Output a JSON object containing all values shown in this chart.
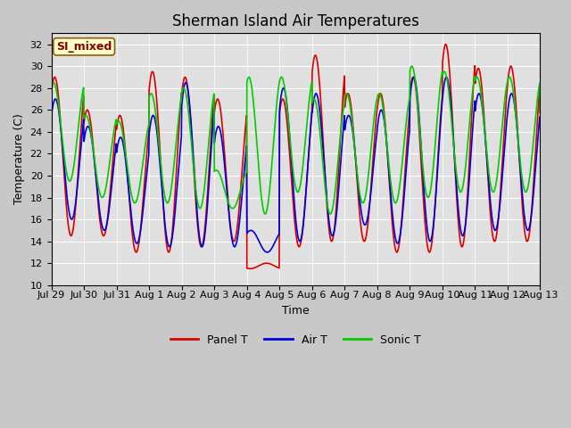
{
  "title": "Sherman Island Air Temperatures",
  "xlabel": "Time",
  "ylabel": "Temperature (C)",
  "ylim": [
    10,
    33
  ],
  "yticks": [
    10,
    12,
    14,
    16,
    18,
    20,
    22,
    24,
    26,
    28,
    30,
    32
  ],
  "fig_bg_color": "#c8c8c8",
  "plot_bg_color": "#e0e0e0",
  "line_colors": {
    "panel": "#dd0000",
    "air": "#0000dd",
    "sonic": "#00cc00"
  },
  "line_widths": {
    "panel": 1.2,
    "air": 1.2,
    "sonic": 1.2
  },
  "label_text": "SI_mixed",
  "legend_labels": [
    "Panel T",
    "Air T",
    "Sonic T"
  ],
  "x_tick_labels": [
    "Jul 29",
    "Jul 30",
    "Jul 31",
    "Aug 1",
    "Aug 2",
    "Aug 3",
    "Aug 4",
    "Aug 5",
    "Aug 6",
    "Aug 7",
    "Aug 8",
    "Aug 9",
    "Aug 10",
    "Aug 11",
    "Aug 12",
    "Aug 13"
  ],
  "title_fontsize": 12,
  "axis_fontsize": 9,
  "tick_fontsize": 8,
  "panel_peaks": [
    29.0,
    26.0,
    25.5,
    29.5,
    29.0,
    27.0,
    11.5,
    27.0,
    31.0,
    27.5,
    27.5,
    29.0,
    32.0,
    29.8,
    30.0,
    27.0
  ],
  "panel_mins": [
    14.5,
    14.5,
    13.0,
    13.0,
    13.5,
    14.0,
    12.0,
    13.5,
    14.0,
    14.0,
    13.0,
    13.0,
    13.5,
    14.0,
    14.0,
    15.0
  ],
  "air_peaks": [
    27.0,
    24.5,
    23.5,
    25.5,
    28.5,
    24.5,
    15.0,
    28.0,
    27.5,
    25.5,
    26.0,
    29.0,
    29.0,
    27.5,
    27.5,
    26.0
  ],
  "air_mins": [
    16.0,
    15.0,
    13.8,
    13.5,
    13.5,
    13.5,
    13.0,
    14.0,
    14.5,
    15.5,
    13.8,
    14.0,
    14.5,
    15.0,
    15.0,
    16.0
  ],
  "sonic_peaks": [
    28.5,
    25.5,
    25.0,
    27.5,
    28.0,
    20.5,
    29.0,
    29.0,
    27.0,
    27.5,
    27.5,
    30.0,
    29.5,
    29.0,
    29.0,
    26.0
  ],
  "sonic_mins": [
    19.5,
    18.0,
    17.5,
    17.5,
    17.0,
    17.0,
    16.5,
    18.5,
    16.5,
    17.5,
    17.5,
    18.0,
    18.5,
    18.5,
    18.5,
    18.5
  ],
  "peak_hour_panel": 14.5,
  "peak_hour_air": 15.0,
  "peak_hour_sonic": 13.5
}
